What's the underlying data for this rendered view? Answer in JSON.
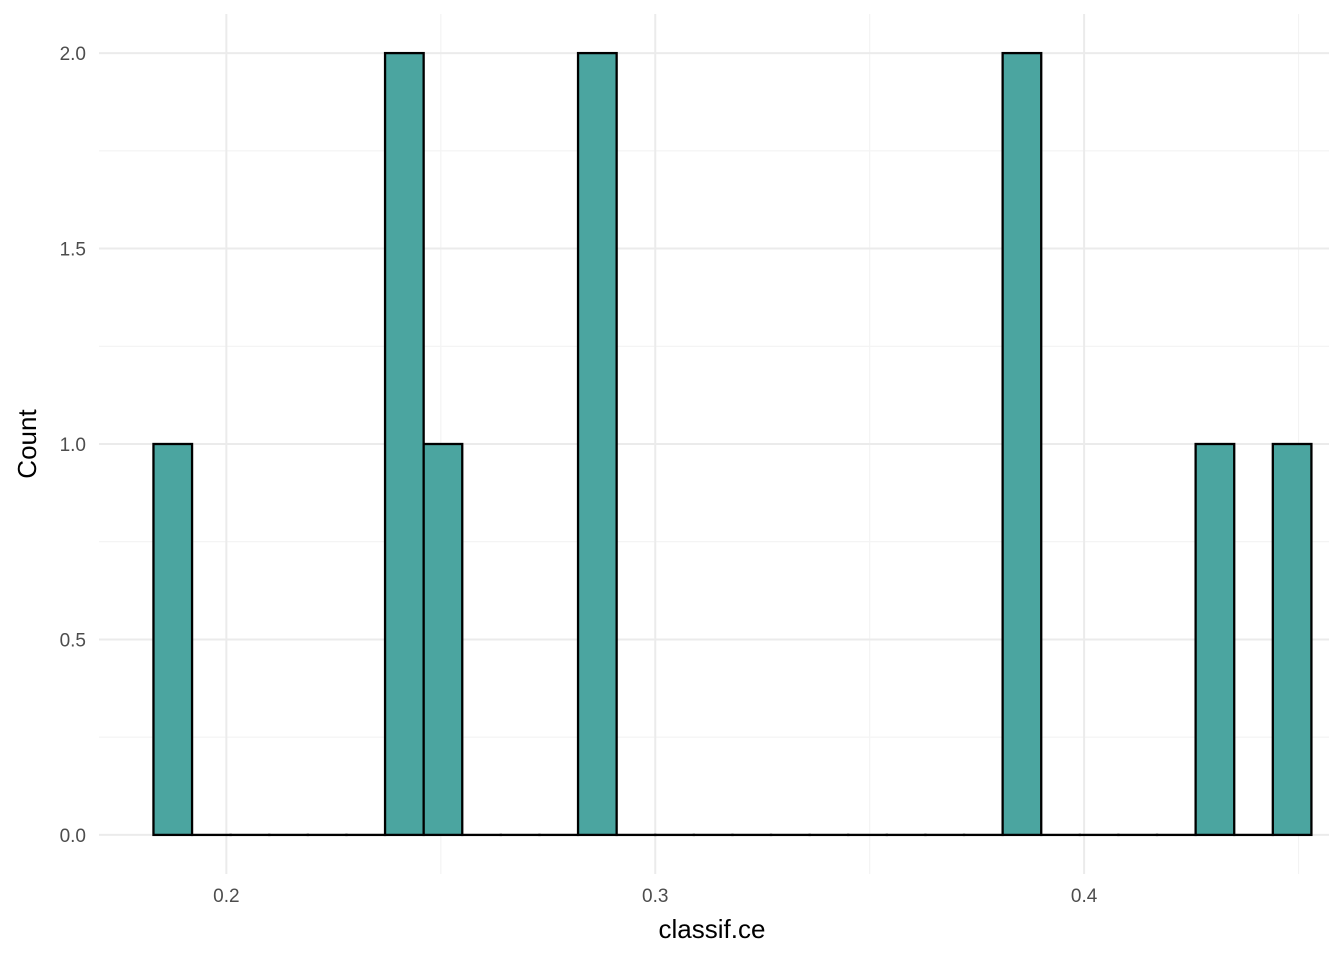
{
  "chart_data": {
    "type": "bar",
    "subtype": "histogram",
    "xlabel": "classif.ce",
    "ylabel": "Count",
    "xlim": [
      0.1703,
      0.4571
    ],
    "ylim": [
      -0.1,
      2.1
    ],
    "x_ticks": [
      0.2,
      0.3,
      0.4
    ],
    "x_tick_labels": [
      "0.2",
      "0.3",
      "0.4"
    ],
    "y_ticks": [
      0,
      0.5,
      1,
      1.5,
      2
    ],
    "y_tick_labels": [
      "0.0",
      "0.5",
      "1.0",
      "1.5",
      "2.0"
    ],
    "bin_width": 0.009,
    "bins": [
      {
        "x0": 0.183,
        "x1": 0.192,
        "count": 1
      },
      {
        "x0": 0.192,
        "x1": 0.201,
        "count": 0
      },
      {
        "x0": 0.201,
        "x1": 0.21,
        "count": 0
      },
      {
        "x0": 0.21,
        "x1": 0.219,
        "count": 0
      },
      {
        "x0": 0.219,
        "x1": 0.228,
        "count": 0
      },
      {
        "x0": 0.228,
        "x1": 0.237,
        "count": 0
      },
      {
        "x0": 0.237,
        "x1": 0.246,
        "count": 2
      },
      {
        "x0": 0.246,
        "x1": 0.255,
        "count": 1
      },
      {
        "x0": 0.255,
        "x1": 0.264,
        "count": 0
      },
      {
        "x0": 0.264,
        "x1": 0.273,
        "count": 0
      },
      {
        "x0": 0.273,
        "x1": 0.282,
        "count": 0
      },
      {
        "x0": 0.282,
        "x1": 0.291,
        "count": 2
      },
      {
        "x0": 0.291,
        "x1": 0.3,
        "count": 0
      },
      {
        "x0": 0.3,
        "x1": 0.309,
        "count": 0
      },
      {
        "x0": 0.309,
        "x1": 0.318,
        "count": 0
      },
      {
        "x0": 0.318,
        "x1": 0.327,
        "count": 0
      },
      {
        "x0": 0.327,
        "x1": 0.336,
        "count": 0
      },
      {
        "x0": 0.336,
        "x1": 0.345,
        "count": 0
      },
      {
        "x0": 0.345,
        "x1": 0.354,
        "count": 0
      },
      {
        "x0": 0.354,
        "x1": 0.363,
        "count": 0
      },
      {
        "x0": 0.363,
        "x1": 0.372,
        "count": 0
      },
      {
        "x0": 0.372,
        "x1": 0.381,
        "count": 0
      },
      {
        "x0": 0.381,
        "x1": 0.39,
        "count": 2
      },
      {
        "x0": 0.39,
        "x1": 0.399,
        "count": 0
      },
      {
        "x0": 0.399,
        "x1": 0.408,
        "count": 0
      },
      {
        "x0": 0.408,
        "x1": 0.417,
        "count": 0
      },
      {
        "x0": 0.417,
        "x1": 0.426,
        "count": 0
      },
      {
        "x0": 0.426,
        "x1": 0.435,
        "count": 1
      },
      {
        "x0": 0.435,
        "x1": 0.444,
        "count": 0
      },
      {
        "x0": 0.444,
        "x1": 0.453,
        "count": 1
      }
    ],
    "grid": true,
    "legend": "none",
    "colors": {
      "bar_fill": "#4ba5a0",
      "bar_outline": "#000000",
      "grid_major": "#ebebeb",
      "grid_minor": "#f3f3f3",
      "tick_text": "#4d4d4d",
      "axis_title": "#000000",
      "background": "#ffffff"
    }
  }
}
